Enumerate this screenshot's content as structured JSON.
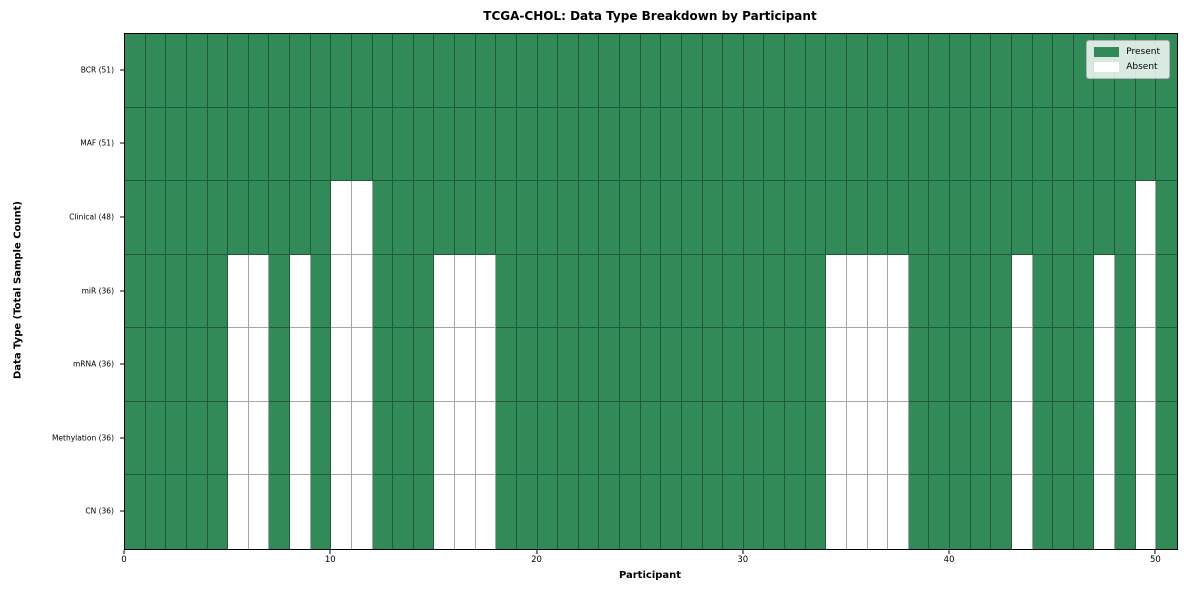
{
  "chart_data": {
    "type": "heatmap",
    "title": "TCGA-CHOL: Data Type Breakdown by Participant",
    "xlabel": "Participant",
    "ylabel": "Data Type (Total Sample Count)",
    "n_participants": 51,
    "x_ticks": [
      0,
      10,
      20,
      30,
      40,
      50
    ],
    "x_range": [
      0,
      51
    ],
    "grid": true,
    "rows": [
      {
        "label": "BCR (51)",
        "present_count": 51,
        "absent_participants": []
      },
      {
        "label": "MAF (51)",
        "present_count": 51,
        "absent_participants": []
      },
      {
        "label": "Clinical (48)",
        "present_count": 48,
        "absent_participants": [
          10,
          11,
          49
        ]
      },
      {
        "label": "miR (36)",
        "present_count": 36,
        "absent_participants": [
          5,
          6,
          8,
          10,
          11,
          15,
          16,
          17,
          34,
          35,
          36,
          37,
          43,
          47,
          49
        ]
      },
      {
        "label": "mRNA (36)",
        "present_count": 36,
        "absent_participants": [
          5,
          6,
          8,
          10,
          11,
          15,
          16,
          17,
          34,
          35,
          36,
          37,
          43,
          47,
          49
        ]
      },
      {
        "label": "Methylation (36)",
        "present_count": 36,
        "absent_participants": [
          5,
          6,
          8,
          10,
          11,
          15,
          16,
          17,
          34,
          35,
          36,
          37,
          43,
          47,
          49
        ]
      },
      {
        "label": "CN (36)",
        "present_count": 36,
        "absent_participants": [
          5,
          6,
          8,
          10,
          11,
          15,
          16,
          17,
          34,
          35,
          36,
          37,
          43,
          47,
          49
        ]
      }
    ],
    "legend": {
      "position": "upper-right",
      "entries": [
        {
          "label": "Present",
          "color": "#318a58"
        },
        {
          "label": "Absent",
          "color": "#ffffff"
        }
      ]
    },
    "colors": {
      "present": "#318a58",
      "absent": "#ffffff",
      "gridline": "rgba(0,0,0,0.35)",
      "axis_border": "#000000"
    }
  }
}
